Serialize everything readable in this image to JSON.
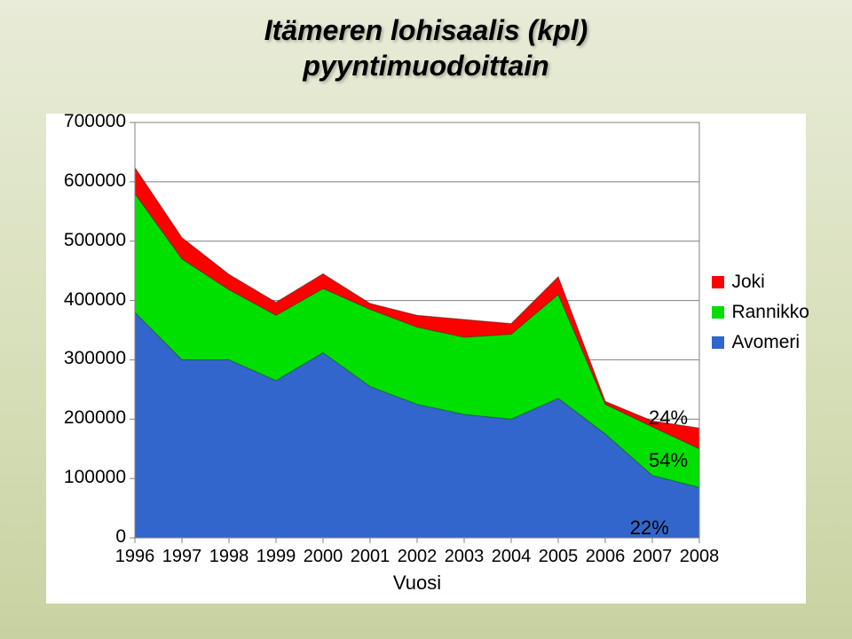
{
  "title_line1": "Itämeren lohisaalis (kpl)",
  "title_line2": "pyyntimuodoittain",
  "chart": {
    "type": "area",
    "background_color": "#ffffff",
    "plot_border_color": "#808080",
    "grid_color": "#808080",
    "x_axis_title": "Vuosi",
    "years": [
      1996,
      1997,
      1998,
      1999,
      2000,
      2001,
      2002,
      2003,
      2004,
      2005,
      2006,
      2007,
      2008
    ],
    "ylim": [
      0,
      700000
    ],
    "ytick_step": 100000,
    "y_ticks": [
      0,
      100000,
      200000,
      300000,
      400000,
      500000,
      600000,
      700000
    ],
    "label_fontsize": 21,
    "series": [
      {
        "name": "Avomeri",
        "color": "#3366cc",
        "values": [
          380000,
          300000,
          300000,
          265000,
          312000,
          255000,
          225000,
          208000,
          200000,
          235000,
          175000,
          105000,
          85000
        ]
      },
      {
        "name": "Rannikko",
        "color": "#00e000",
        "values": [
          200000,
          170000,
          118000,
          110000,
          108000,
          130000,
          130000,
          130000,
          143000,
          175000,
          50000,
          82000,
          65000
        ]
      },
      {
        "name": "Joki",
        "color": "#ff0000",
        "values": [
          44000,
          36000,
          26000,
          22000,
          25000,
          10000,
          20000,
          30000,
          18000,
          30000,
          5000,
          10000,
          35000
        ]
      }
    ],
    "stacked_totals": [
      624000,
      506000,
      444000,
      397000,
      445000,
      395000,
      375000,
      368000,
      361000,
      440000,
      230000,
      197000,
      185000
    ],
    "annotations": [
      {
        "text": "24%",
        "x_year": 2007,
        "stack_value": 200000
      },
      {
        "text": "54%",
        "x_year": 2007,
        "stack_value": 128000
      },
      {
        "text": "22%",
        "x_year": 2006.6,
        "stack_value": 15000
      }
    ],
    "legend_order": [
      "Joki",
      "Rannikko",
      "Avomeri"
    ]
  }
}
